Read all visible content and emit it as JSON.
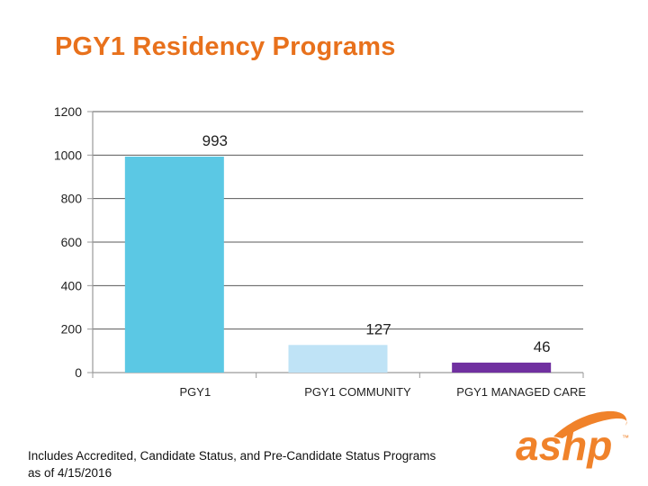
{
  "title": "PGY1 Residency Programs",
  "footnote": {
    "line1": "Includes Accredited, Candidate Status, and Pre-Candidate Status Programs",
    "line2": "as of 4/15/2016"
  },
  "logo": {
    "text": "ashp",
    "trademark": "™"
  },
  "colors": {
    "title": "#e8711c",
    "logo_orange": "#f0822a",
    "axis": "#9a9a9a",
    "grid": "#595959"
  },
  "chart_data": {
    "type": "bar",
    "categories": [
      "PGY1",
      "PGY1 COMMUNITY",
      "PGY1 MANAGED CARE"
    ],
    "values": [
      993,
      127,
      46
    ],
    "bar_colors": [
      "#5bc8e4",
      "#bfe3f6",
      "#7030a0"
    ],
    "yticks": [
      0,
      200,
      400,
      600,
      800,
      1000,
      1200
    ],
    "ylim": [
      0,
      1200
    ],
    "grid": true,
    "data_labels": true,
    "legend": "none",
    "xlabel": "",
    "ylabel": ""
  }
}
